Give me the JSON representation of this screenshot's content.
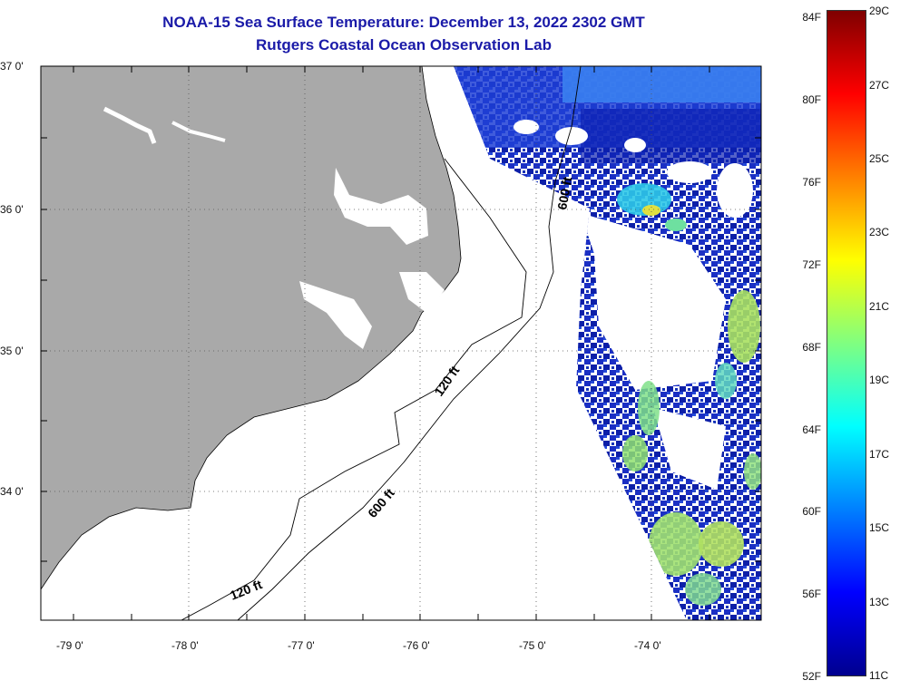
{
  "title": {
    "line1": "NOAA-15 Sea Surface Temperature:  December 13, 2022 2302 GMT",
    "line2": "Rutgers Coastal Ocean Observation Lab"
  },
  "axes": {
    "lat_labels": [
      "37 0'",
      "36 0'",
      "35 0'",
      "34 0'"
    ],
    "lon_labels": [
      "-79 0'",
      "-78 0'",
      "-77 0'",
      "-76 0'",
      "-75 0'",
      "-74 0'"
    ]
  },
  "contours": {
    "label_120_a": "120 ft",
    "label_120_b": "120 ft",
    "label_600_a": "600 ft",
    "label_600_b": "600 ft"
  },
  "colorbar": {
    "fahrenheit": [
      "84F",
      "80F",
      "76F",
      "72F",
      "68F",
      "64F",
      "60F",
      "56F",
      "52F"
    ],
    "celsius": [
      "29C",
      "27C",
      "25C",
      "23C",
      "21C",
      "19C",
      "17C",
      "15C",
      "13C",
      "11C"
    ],
    "colors": [
      "#7f0000",
      "#ff0000",
      "#ff8000",
      "#ffff00",
      "#80ff80",
      "#00ffff",
      "#0080ff",
      "#0000ff",
      "#00008f"
    ]
  },
  "colors": {
    "land": "#a9a9a9",
    "title": "#1a1aa8",
    "sst_deep_blue": "#0a1fb5",
    "sst_blue": "#2a55e0",
    "sst_warm": "#9be06a"
  }
}
